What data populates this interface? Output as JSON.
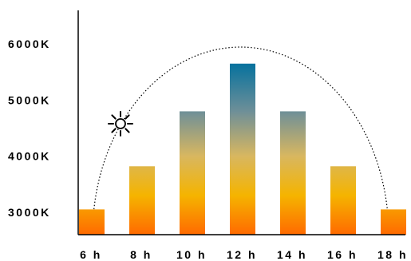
{
  "chart_data": {
    "type": "bar",
    "categories": [
      "6 h",
      "8 h",
      "10 h",
      "12 h",
      "14 h",
      "16 h",
      "18 h"
    ],
    "values": [
      3050,
      3820,
      4800,
      5650,
      4800,
      3820,
      3050
    ],
    "ytick_labels": [
      "3000K",
      "4000K",
      "5000K",
      "6000K"
    ],
    "ytick_values": [
      3000,
      4000,
      5000,
      6000
    ],
    "ylim": [
      2600,
      6600
    ],
    "title": "",
    "xlabel": "",
    "ylabel": "",
    "grid": false,
    "gradient_colors": [
      "#ff6a00",
      "#f5b400",
      "#d8b760",
      "#6e8f98",
      "#00709e"
    ],
    "gradient_kelvin": [
      2600,
      3300,
      4000,
      4800,
      5700
    ],
    "annotation_icon": "sun-icon",
    "arc_style": "dotted"
  }
}
